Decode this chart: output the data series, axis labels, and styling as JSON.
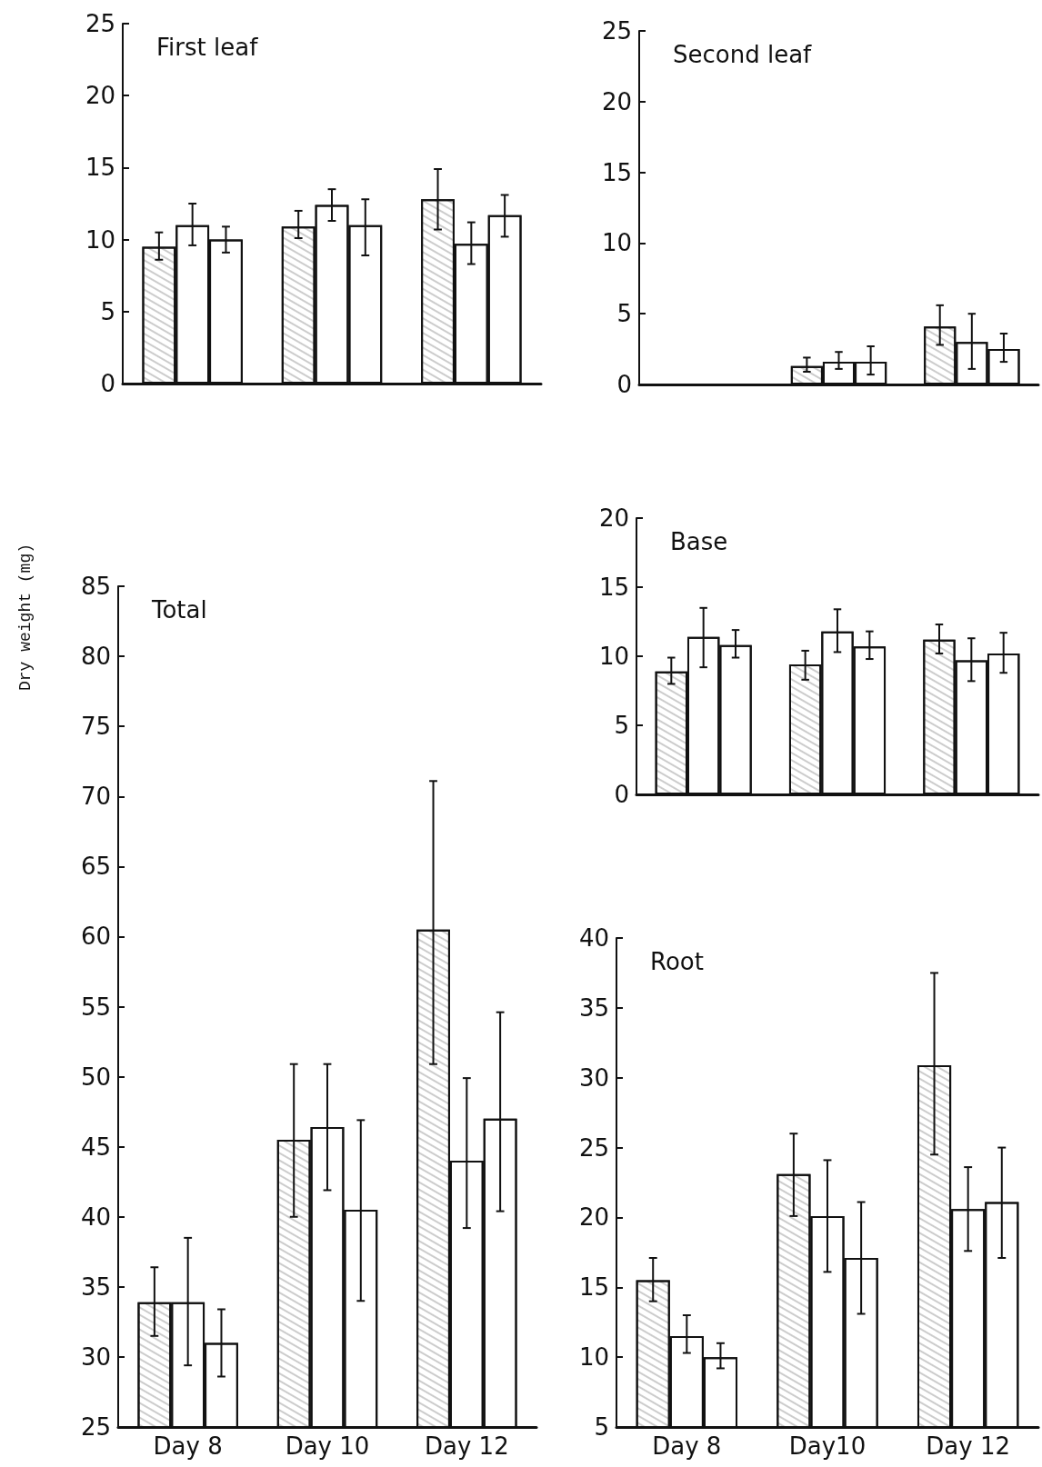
{
  "chart_data": [
    {
      "type": "bar",
      "title": "First leaf",
      "categories": [
        null,
        null,
        null
      ],
      "ylim": [
        0,
        25
      ],
      "yticks": [
        0,
        5,
        10,
        15,
        20,
        25
      ],
      "grid": false,
      "series": [
        {
          "color": "#ffffff",
          "values": [
            9.5,
            10.9,
            12.8
          ],
          "errors": [
            [
              8.6,
              10.5
            ],
            [
              10.1,
              12.0
            ],
            [
              10.7,
              14.9
            ]
          ]
        },
        {
          "color": "#ffffff",
          "values": [
            11.0,
            12.4,
            9.7
          ],
          "errors": [
            [
              9.6,
              12.5
            ],
            [
              11.3,
              13.5
            ],
            [
              8.3,
              11.2
            ]
          ]
        },
        {
          "color": "#ffffff",
          "values": [
            10.0,
            11.0,
            11.7
          ],
          "errors": [
            [
              9.1,
              10.9
            ],
            [
              8.9,
              12.8
            ],
            [
              10.2,
              13.1
            ]
          ]
        }
      ]
    },
    {
      "type": "bar",
      "title": "Second leaf",
      "categories": [
        null,
        null,
        null
      ],
      "ylim": [
        0,
        25
      ],
      "yticks": [
        0,
        5,
        10,
        15,
        20,
        25
      ],
      "grid": false,
      "series": [
        {
          "color": "#ffffff",
          "values": [
            null,
            1.3,
            4.1
          ],
          "errors": [
            null,
            [
              0.9,
              1.9
            ],
            [
              2.8,
              5.6
            ]
          ]
        },
        {
          "color": "#ffffff",
          "values": [
            null,
            1.6,
            3.0
          ],
          "errors": [
            null,
            [
              1.1,
              2.3
            ],
            [
              1.1,
              5.0
            ]
          ]
        },
        {
          "color": "#ffffff",
          "values": [
            null,
            1.6,
            2.5
          ],
          "errors": [
            null,
            [
              0.7,
              2.7
            ],
            [
              1.6,
              3.6
            ]
          ]
        }
      ]
    },
    {
      "type": "bar",
      "title": "Base",
      "categories": [
        null,
        null,
        null
      ],
      "ylim": [
        0,
        20
      ],
      "yticks": [
        0,
        5,
        10,
        15,
        20
      ],
      "grid": false,
      "series": [
        {
          "color": "#ffffff",
          "values": [
            8.9,
            9.4,
            11.2
          ],
          "errors": [
            [
              8.0,
              9.9
            ],
            [
              8.3,
              10.4
            ],
            [
              10.2,
              12.3
            ]
          ]
        },
        {
          "color": "#ffffff",
          "values": [
            11.4,
            11.8,
            9.7
          ],
          "errors": [
            [
              9.2,
              13.5
            ],
            [
              10.3,
              13.4
            ],
            [
              8.2,
              11.3
            ]
          ]
        },
        {
          "color": "#ffffff",
          "values": [
            10.8,
            10.7,
            10.2
          ],
          "errors": [
            [
              9.9,
              11.9
            ],
            [
              9.8,
              11.8
            ],
            [
              8.8,
              11.7
            ]
          ]
        }
      ]
    },
    {
      "type": "bar",
      "title": "Total",
      "ylabel": "Dry weight (mg)",
      "categories": [
        "Day 8",
        "Day 10",
        "Day 12"
      ],
      "ylim": [
        25,
        85
      ],
      "yticks": [
        25,
        30,
        35,
        40,
        45,
        50,
        55,
        60,
        65,
        70,
        75,
        80,
        85
      ],
      "grid": false,
      "series": [
        {
          "color": "#ffffff",
          "values": [
            33.9,
            45.5,
            60.5
          ],
          "errors": [
            [
              31.5,
              36.4
            ],
            [
              40.0,
              50.9
            ],
            [
              50.9,
              71.1
            ]
          ]
        },
        {
          "color": "#ffffff",
          "values": [
            33.9,
            46.4,
            44.0
          ],
          "errors": [
            [
              29.4,
              38.5
            ],
            [
              41.9,
              50.9
            ],
            [
              39.2,
              49.9
            ]
          ]
        },
        {
          "color": "#ffffff",
          "values": [
            31.0,
            40.5,
            47.0
          ],
          "errors": [
            [
              28.6,
              33.4
            ],
            [
              34.0,
              46.9
            ],
            [
              40.4,
              54.6
            ]
          ]
        }
      ]
    },
    {
      "type": "bar",
      "title": "Root",
      "categories": [
        "Day 8",
        "Day10",
        "Day 12"
      ],
      "ylim": [
        5,
        40
      ],
      "yticks": [
        5,
        10,
        15,
        20,
        25,
        30,
        35,
        40
      ],
      "grid": false,
      "series": [
        {
          "color": "#ffffff",
          "values": [
            15.5,
            23.1,
            30.9
          ],
          "errors": [
            [
              14.0,
              17.1
            ],
            [
              20.1,
              26.0
            ],
            [
              24.5,
              37.5
            ]
          ]
        },
        {
          "color": "#ffffff",
          "values": [
            11.5,
            20.1,
            20.6
          ],
          "errors": [
            [
              10.3,
              13.0
            ],
            [
              16.1,
              24.1
            ],
            [
              17.6,
              23.6
            ]
          ]
        },
        {
          "color": "#ffffff",
          "values": [
            10.0,
            17.1,
            21.1
          ],
          "errors": [
            [
              9.2,
              11.0
            ],
            [
              13.1,
              21.1
            ],
            [
              17.1,
              25.0
            ]
          ]
        }
      ]
    }
  ]
}
